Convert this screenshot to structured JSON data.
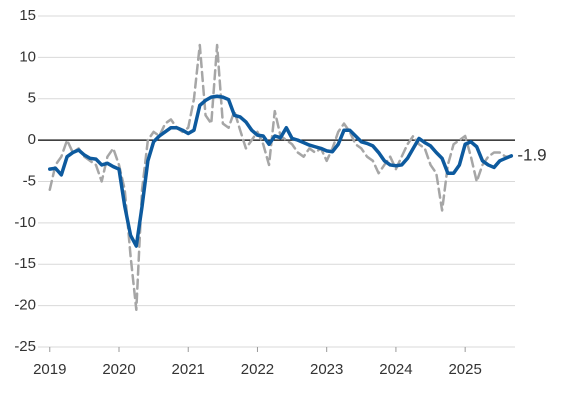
{
  "chart_data": {
    "type": "line",
    "x": [
      2019,
      2019.083,
      2019.167,
      2019.25,
      2019.333,
      2019.417,
      2019.5,
      2019.583,
      2019.667,
      2019.75,
      2019.833,
      2019.917,
      2020,
      2020.083,
      2020.167,
      2020.25,
      2020.333,
      2020.417,
      2020.5,
      2020.583,
      2020.667,
      2020.75,
      2020.833,
      2020.917,
      2021,
      2021.083,
      2021.167,
      2021.25,
      2021.333,
      2021.417,
      2021.5,
      2021.583,
      2021.667,
      2021.75,
      2021.833,
      2021.917,
      2022,
      2022.083,
      2022.167,
      2022.25,
      2022.333,
      2022.417,
      2022.5,
      2022.583,
      2022.667,
      2022.75,
      2022.833,
      2022.917,
      2023,
      2023.083,
      2023.167,
      2023.25,
      2023.333,
      2023.417,
      2023.5,
      2023.583,
      2023.667,
      2023.75,
      2023.833,
      2023.917,
      2024,
      2024.083,
      2024.167,
      2024.25,
      2024.333,
      2024.417,
      2024.5,
      2024.583,
      2024.667,
      2024.75,
      2024.833,
      2024.917,
      2025,
      2025.083,
      2025.167,
      2025.25,
      2025.333,
      2025.417,
      2025.5,
      2025.583,
      2025.667
    ],
    "series": [
      {
        "color": "#a6a6a6",
        "dashed": true,
        "values": [
          -6,
          -3,
          -2,
          0,
          -1.5,
          -1,
          -2,
          -2.5,
          -3,
          -5,
          -2,
          -1,
          -3,
          -6,
          -14,
          -20.5,
          -6,
          0,
          1,
          0.5,
          2,
          2.5,
          1.5,
          1,
          1.5,
          5,
          11.5,
          3,
          2,
          11.5,
          2,
          1.5,
          3.5,
          1.2,
          -1,
          0,
          1,
          -0.5,
          -3,
          3.5,
          0.5,
          0,
          -0.5,
          -1.5,
          -2,
          -1,
          -1.5,
          -1,
          -2.5,
          -1,
          1,
          2,
          1,
          -0.5,
          -1,
          -2,
          -2.5,
          -4,
          -3,
          -2,
          -3.5,
          -2,
          -0.5,
          0.5,
          -0.5,
          -1,
          -3,
          -4,
          -8.5,
          -3,
          -0.5,
          0,
          0.5,
          -2,
          -5,
          -3,
          -2,
          -1.5,
          -1.5,
          -2,
          -2
        ]
      },
      {
        "color": "#0d5a9e",
        "dashed": false,
        "values": [
          -3.5,
          -3.4,
          -4.2,
          -2,
          -1.5,
          -1.2,
          -1.8,
          -2.2,
          -2.3,
          -3,
          -2.8,
          -3.2,
          -3.5,
          -8,
          -11.5,
          -12.8,
          -8,
          -2.5,
          -0.2,
          0.5,
          1,
          1.5,
          1.5,
          1.2,
          0.8,
          1.2,
          4.2,
          4.8,
          5.2,
          5.3,
          5.2,
          4.9,
          3,
          2.8,
          2.2,
          1.2,
          0.6,
          0.5,
          -0.5,
          0.5,
          0.3,
          1.5,
          0.2,
          0,
          -0.3,
          -0.6,
          -0.8,
          -1,
          -1.3,
          -1.4,
          -0.5,
          1.2,
          1.2,
          0.5,
          -0.2,
          -0.4,
          -0.7,
          -1.5,
          -2.5,
          -3,
          -3.1,
          -3,
          -2.2,
          -1,
          0.2,
          -0.3,
          -0.7,
          -1.5,
          -2.2,
          -4,
          -4,
          -3,
          -0.5,
          -0.2,
          -0.8,
          -2.5,
          -3,
          -3.3,
          -2.5,
          -2.2,
          -1.9
        ]
      }
    ],
    "end_label": "-1.9",
    "xlim": [
      2018.83,
      2025.72
    ],
    "xticks": [
      2019,
      2020,
      2021,
      2022,
      2023,
      2024,
      2025
    ],
    "ylim": [
      -25,
      15
    ],
    "yticks": [
      15,
      10,
      5,
      0,
      -5,
      -10,
      -15,
      -20,
      -25
    ],
    "grid": true,
    "zero_line_color": "#000000"
  }
}
